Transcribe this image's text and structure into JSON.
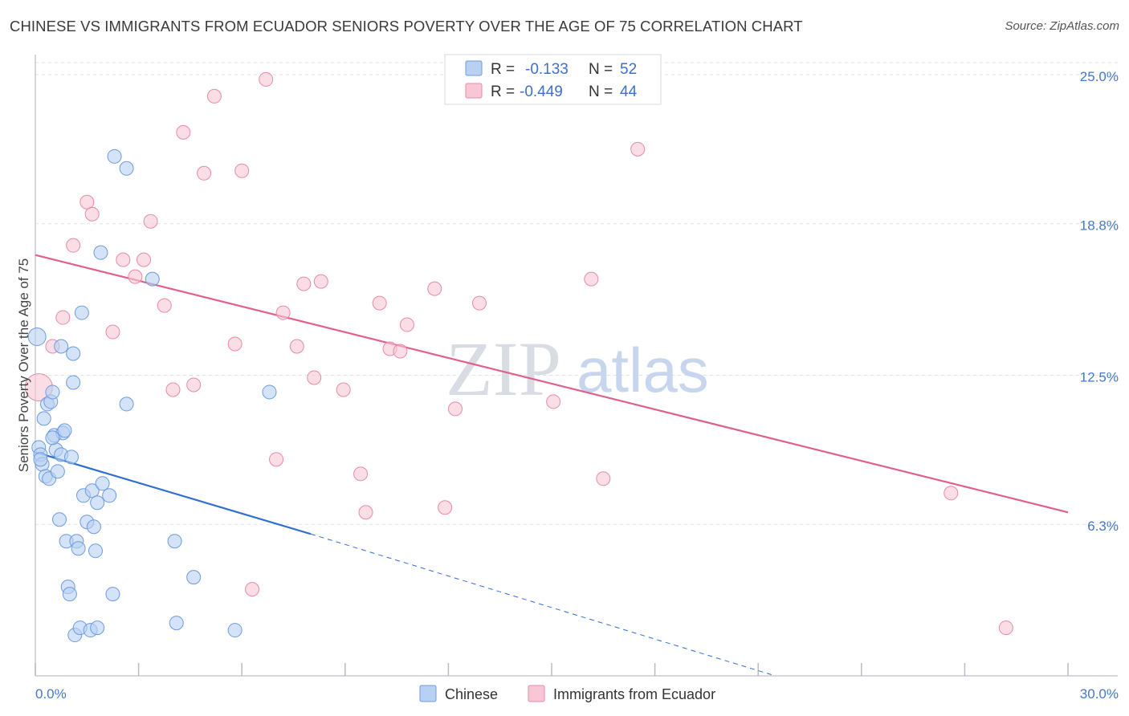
{
  "title": "CHINESE VS IMMIGRANTS FROM ECUADOR SENIORS POVERTY OVER THE AGE OF 75 CORRELATION CHART",
  "source": "Source: ZipAtlas.com",
  "watermark": {
    "zip": "ZIP",
    "atlas": "atlas"
  },
  "legend": {
    "r_label": "R =",
    "n_label": "N =",
    "entries": [
      {
        "r": "-0.133",
        "n": "52"
      },
      {
        "r": "-0.449",
        "n": "44"
      }
    ]
  },
  "colors": {
    "chinese_fill": "#b8d0f2",
    "chinese_stroke": "#6d9be0",
    "chinese_line": "#2f6fd0",
    "ecuador_fill": "#f8c6d4",
    "ecuador_stroke": "#e88aa8",
    "ecuador_line": "#e0608a",
    "grid": "#dde3ea",
    "tick_label": "#4477cc"
  },
  "chart_data": {
    "type": "scatter",
    "title": "CHINESE VS IMMIGRANTS FROM ECUADOR SENIORS POVERTY OVER THE AGE OF 75 CORRELATION CHART",
    "xlabel": "",
    "ylabel": "Seniors Poverty Over the Age of 75",
    "xlim": [
      0,
      30
    ],
    "ylim": [
      0,
      26.5
    ],
    "x_tick_labels": [
      "0.0%",
      "30.0%"
    ],
    "y_ticks": [
      6.3,
      12.5,
      18.8,
      25.0
    ],
    "y_tick_labels": [
      "6.3%",
      "12.5%",
      "18.8%",
      "25.0%"
    ],
    "grid": true,
    "legend_position": "top-center",
    "series": [
      {
        "name": "Chinese",
        "r": -0.133,
        "n": 52,
        "trend": {
          "x": [
            0,
            8.0
          ],
          "y": [
            9.3,
            5.9
          ],
          "dashed_extension_to": [
            21.5,
            0
          ]
        },
        "points": [
          [
            0.05,
            14.1
          ],
          [
            0.1,
            9.5
          ],
          [
            0.15,
            9.2
          ],
          [
            0.2,
            8.8
          ],
          [
            0.25,
            10.7
          ],
          [
            0.3,
            8.3
          ],
          [
            0.35,
            11.3
          ],
          [
            0.4,
            8.2
          ],
          [
            0.45,
            11.4
          ],
          [
            0.5,
            11.8
          ],
          [
            0.55,
            10.0
          ],
          [
            0.6,
            9.4
          ],
          [
            0.65,
            8.5
          ],
          [
            0.7,
            6.5
          ],
          [
            0.75,
            13.7
          ],
          [
            0.75,
            9.2
          ],
          [
            0.8,
            10.1
          ],
          [
            0.85,
            10.2
          ],
          [
            0.9,
            5.6
          ],
          [
            0.95,
            3.7
          ],
          [
            1.0,
            3.4
          ],
          [
            1.05,
            9.1
          ],
          [
            1.1,
            13.4
          ],
          [
            1.1,
            12.2
          ],
          [
            1.15,
            1.7
          ],
          [
            1.2,
            5.6
          ],
          [
            1.25,
            5.3
          ],
          [
            1.3,
            2.0
          ],
          [
            1.35,
            15.1
          ],
          [
            1.4,
            7.5
          ],
          [
            1.5,
            6.4
          ],
          [
            1.6,
            1.9
          ],
          [
            1.65,
            7.7
          ],
          [
            1.7,
            6.2
          ],
          [
            1.75,
            5.2
          ],
          [
            1.8,
            7.2
          ],
          [
            1.8,
            2.0
          ],
          [
            1.9,
            17.6
          ],
          [
            1.95,
            8.0
          ],
          [
            2.15,
            7.5
          ],
          [
            2.25,
            3.4
          ],
          [
            2.3,
            21.6
          ],
          [
            2.65,
            21.1
          ],
          [
            2.65,
            11.3
          ],
          [
            3.4,
            16.5
          ],
          [
            4.05,
            5.6
          ],
          [
            4.1,
            2.2
          ],
          [
            4.6,
            4.1
          ],
          [
            5.8,
            1.9
          ],
          [
            6.8,
            11.8
          ],
          [
            0.15,
            9.0
          ],
          [
            0.5,
            9.9
          ]
        ]
      },
      {
        "name": "Immigrants from Ecuador",
        "r": -0.449,
        "n": 44,
        "trend": {
          "x": [
            0,
            30
          ],
          "y": [
            17.5,
            6.8
          ]
        },
        "points": [
          [
            0.1,
            12.0
          ],
          [
            0.5,
            13.7
          ],
          [
            0.8,
            14.9
          ],
          [
            1.1,
            17.9
          ],
          [
            1.5,
            19.7
          ],
          [
            1.65,
            19.2
          ],
          [
            2.25,
            14.3
          ],
          [
            2.55,
            17.3
          ],
          [
            2.9,
            16.6
          ],
          [
            3.15,
            17.3
          ],
          [
            3.35,
            18.9
          ],
          [
            3.75,
            15.4
          ],
          [
            4.0,
            11.9
          ],
          [
            4.3,
            22.6
          ],
          [
            4.6,
            12.1
          ],
          [
            4.9,
            20.9
          ],
          [
            5.2,
            24.1
          ],
          [
            5.8,
            13.8
          ],
          [
            6.0,
            21.0
          ],
          [
            6.7,
            24.8
          ],
          [
            7.0,
            9.0
          ],
          [
            7.2,
            15.1
          ],
          [
            6.3,
            3.6
          ],
          [
            7.6,
            13.7
          ],
          [
            7.8,
            16.3
          ],
          [
            8.1,
            12.4
          ],
          [
            8.3,
            16.4
          ],
          [
            8.95,
            11.9
          ],
          [
            9.45,
            8.4
          ],
          [
            9.6,
            6.8
          ],
          [
            10.0,
            15.5
          ],
          [
            10.3,
            13.6
          ],
          [
            10.6,
            13.5
          ],
          [
            10.8,
            14.6
          ],
          [
            11.6,
            16.1
          ],
          [
            12.2,
            11.1
          ],
          [
            12.9,
            15.5
          ],
          [
            15.05,
            11.4
          ],
          [
            16.15,
            16.5
          ],
          [
            16.5,
            8.2
          ],
          [
            17.5,
            21.9
          ],
          [
            26.6,
            7.6
          ],
          [
            28.2,
            2.0
          ],
          [
            11.9,
            7.0
          ]
        ]
      }
    ]
  }
}
